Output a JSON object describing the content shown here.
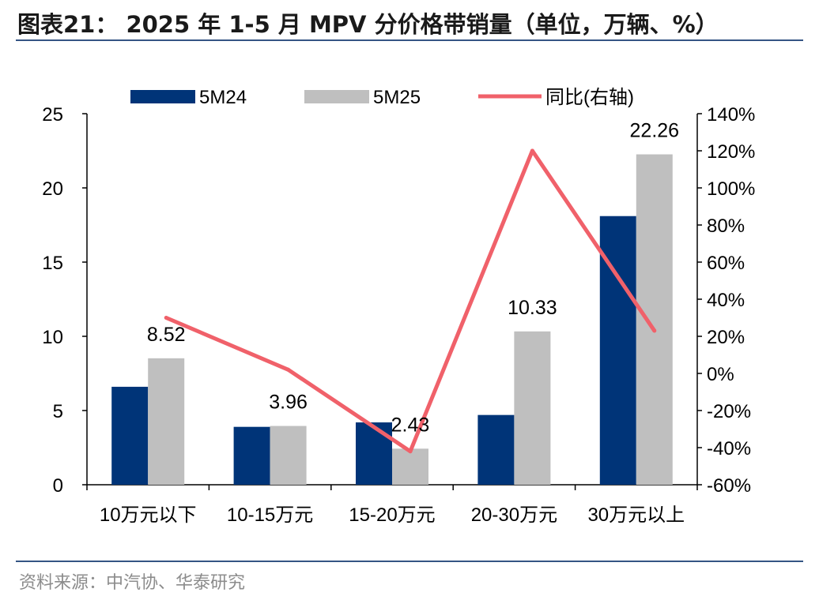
{
  "header": {
    "title": "图表21： 2025 年 1-5 月 MPV 分价格带销量（单位，万辆、%）"
  },
  "footer": {
    "source": "资料来源：中汽协、华泰研究"
  },
  "colors": {
    "series1": "#003478",
    "series2": "#bfbfbf",
    "line": "#f0616a",
    "rule": "#355584"
  },
  "chart_data": {
    "type": "bar",
    "categories": [
      "10万元以下",
      "10-15万元",
      "15-20万元",
      "20-30万元",
      "30万元以上"
    ],
    "series": [
      {
        "name": "5M24",
        "type": "bar",
        "axis": "left",
        "values": [
          6.6,
          3.9,
          4.2,
          4.7,
          18.1
        ]
      },
      {
        "name": "5M25",
        "type": "bar",
        "axis": "left",
        "values": [
          8.52,
          3.96,
          2.43,
          10.33,
          22.26
        ]
      },
      {
        "name": "同比(右轴)",
        "type": "line",
        "axis": "right",
        "values": [
          30,
          2,
          -42,
          120,
          23
        ]
      }
    ],
    "data_labels": [
      "8.52",
      "3.96",
      "2.43",
      "10.33",
      "22.26"
    ],
    "y_left": {
      "min": 0,
      "max": 25,
      "ticks": [
        "0",
        "5",
        "10",
        "15",
        "20",
        "25"
      ]
    },
    "y_right": {
      "min": -60,
      "max": 140,
      "ticks": [
        "-60%",
        "-40%",
        "-20%",
        "0%",
        "20%",
        "40%",
        "60%",
        "80%",
        "100%",
        "120%",
        "140%"
      ]
    },
    "legend": {
      "position": "top",
      "entries": [
        "5M24",
        "5M25",
        "同比(右轴)"
      ]
    },
    "grid": false
  }
}
